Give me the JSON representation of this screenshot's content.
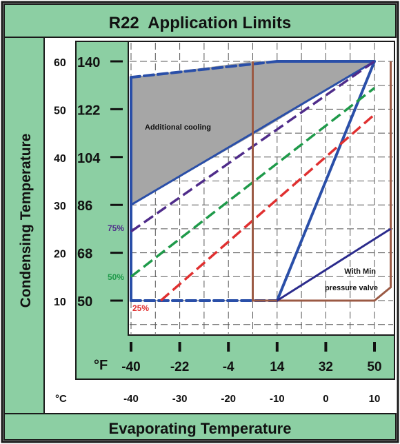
{
  "colors": {
    "panel_green": "#8ccfa3",
    "frame_black": "#1a1a1a",
    "cooling_fill": "#a6a6a6",
    "envelope_blue": "#2a4fa8",
    "brown": "#9b5a44",
    "purple": "#4f2c8a",
    "green": "#1f9a4a",
    "red": "#e03030",
    "navy": "#2b2b8c"
  },
  "chart_data": {
    "type": "line",
    "title": "R22  Application Limits",
    "xlabel": "Evaporating Temperature",
    "ylabel": "Condensing Temperature",
    "x_unit_f": "°F",
    "x_unit_c": "°C",
    "xlim_f": [
      -40,
      50
    ],
    "ylim_f": [
      50,
      140
    ],
    "x_ticks_f": [
      -40,
      -22,
      -4,
      14,
      32,
      50
    ],
    "x_ticks_c": [
      -40,
      -30,
      -20,
      -10,
      0,
      10
    ],
    "y_ticks_f": [
      140,
      122,
      104,
      86,
      68,
      50
    ],
    "y_ticks_c": [
      60,
      50,
      40,
      30,
      20,
      10
    ],
    "grid": true,
    "shaded_region": {
      "label": "Additional cooling",
      "points": [
        [
          -40,
          86
        ],
        [
          -40,
          134
        ],
        [
          5,
          140
        ],
        [
          50,
          140
        ],
        [
          8,
          114
        ]
      ]
    },
    "series": [
      {
        "id": "envelope",
        "color": "#2a4fa8",
        "style": "mixed",
        "points": [
          [
            -40,
            50
          ],
          [
            14,
            50
          ],
          [
            50,
            140
          ],
          [
            14,
            140
          ],
          [
            -40,
            134
          ],
          [
            -40,
            50
          ]
        ]
      },
      {
        "id": "limit_line",
        "color": "#2a4fa8",
        "style": "solid",
        "points": [
          [
            -40,
            86
          ],
          [
            50,
            140
          ]
        ]
      },
      {
        "name": "75%",
        "color": "#4f2c8a",
        "style": "dashed",
        "points": [
          [
            -40,
            76
          ],
          [
            50,
            140
          ]
        ]
      },
      {
        "name": "50%",
        "color": "#1f9a4a",
        "style": "dashed",
        "points": [
          [
            -40,
            59
          ],
          [
            50,
            130
          ]
        ]
      },
      {
        "name": "25%",
        "color": "#e03030",
        "style": "dashed",
        "points": [
          [
            -29,
            50
          ],
          [
            50,
            120
          ]
        ]
      },
      {
        "id": "brown_box",
        "color": "#9b5a44",
        "style": "solid",
        "points": [
          [
            5,
            140
          ],
          [
            5,
            50
          ],
          [
            50,
            50
          ],
          [
            56,
            55
          ],
          [
            56,
            140
          ]
        ]
      },
      {
        "id": "min_pressure_line",
        "color": "#2b2b8c",
        "style": "solid",
        "points": [
          [
            14,
            50
          ],
          [
            56,
            77
          ]
        ]
      }
    ],
    "annotations": [
      {
        "text": "Additional cooling"
      },
      {
        "text": "With Min"
      },
      {
        "text": "pressure valve"
      }
    ]
  }
}
